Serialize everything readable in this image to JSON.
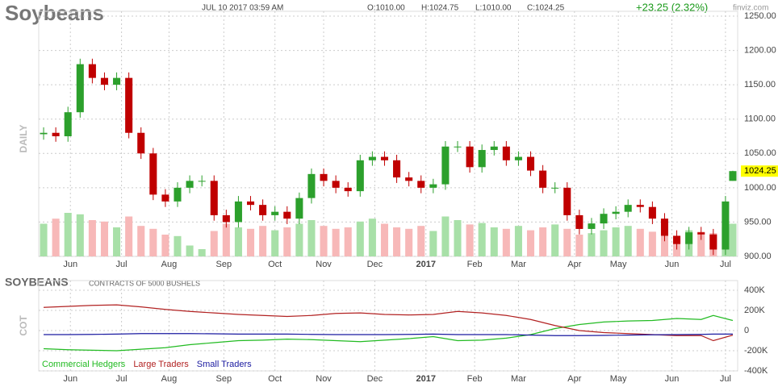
{
  "chart_data": [
    {
      "type": "candlestick",
      "title": "Soybeans",
      "date_label": "JUL 10 2017 03:59 AM",
      "ohlc_labels": [
        "O:1010.00",
        "H:1024.75",
        "L:1010.00",
        "C:1024.25"
      ],
      "change_label": "+23.25 (2.32%)",
      "source": "finviz.com",
      "y_label": "DAILY",
      "last_label": "1024.25",
      "x": [
        0,
        5,
        10,
        15,
        20,
        25,
        30,
        35,
        40,
        45,
        50,
        55,
        60,
        65,
        70,
        75,
        80,
        85,
        90,
        95,
        100,
        105,
        110,
        115,
        120,
        125,
        130,
        135,
        140,
        145,
        150,
        155,
        160,
        165,
        170,
        175,
        180,
        185,
        190,
        195,
        200,
        205,
        210,
        215,
        220,
        225,
        230,
        235,
        240,
        245,
        250,
        255,
        260,
        265,
        270,
        275,
        280,
        283
      ],
      "open": [
        1078,
        1080,
        1075,
        1110,
        1180,
        1160,
        1150,
        1160,
        1080,
        1050,
        990,
        980,
        1000,
        1010,
        1010,
        960,
        950,
        980,
        975,
        960,
        965,
        955,
        985,
        1020,
        1010,
        1000,
        995,
        1040,
        1045,
        1040,
        1015,
        1010,
        1000,
        1005,
        1060,
        1060,
        1030,
        1055,
        1060,
        1040,
        1045,
        1025,
        1000,
        1000,
        960,
        940,
        948,
        962,
        965,
        975,
        972,
        955,
        930,
        918,
        935,
        932,
        910,
        1010
      ],
      "high": [
        1088,
        1088,
        1118,
        1188,
        1188,
        1168,
        1168,
        1168,
        1088,
        1058,
        998,
        1008,
        1018,
        1018,
        1018,
        968,
        988,
        988,
        983,
        973,
        973,
        993,
        1028,
        1028,
        1018,
        1008,
        1048,
        1053,
        1053,
        1048,
        1023,
        1018,
        1013,
        1068,
        1068,
        1068,
        1063,
        1068,
        1068,
        1053,
        1053,
        1033,
        1008,
        1008,
        968,
        956,
        970,
        973,
        983,
        983,
        980,
        963,
        938,
        943,
        943,
        940,
        988,
        1024.75
      ],
      "low": [
        1070,
        1067,
        1067,
        1102,
        1152,
        1142,
        1142,
        1072,
        1042,
        982,
        972,
        972,
        992,
        1002,
        952,
        942,
        942,
        967,
        952,
        952,
        947,
        947,
        977,
        1002,
        992,
        987,
        987,
        1032,
        1032,
        1007,
        1002,
        992,
        992,
        997,
        1052,
        1022,
        1022,
        1047,
        1032,
        1032,
        1017,
        992,
        992,
        952,
        932,
        932,
        940,
        954,
        957,
        964,
        947,
        922,
        910,
        910,
        924,
        902,
        902,
        1010
      ],
      "close": [
        1080,
        1075,
        1110,
        1180,
        1160,
        1150,
        1160,
        1080,
        1050,
        990,
        980,
        1000,
        1010,
        1010,
        960,
        950,
        980,
        975,
        960,
        965,
        955,
        985,
        1020,
        1010,
        1000,
        995,
        1040,
        1045,
        1040,
        1015,
        1010,
        1000,
        1005,
        1060,
        1060,
        1030,
        1055,
        1060,
        1040,
        1045,
        1025,
        1000,
        1000,
        960,
        940,
        948,
        962,
        965,
        975,
        972,
        955,
        930,
        918,
        935,
        932,
        910,
        980,
        1024.25
      ],
      "volume": [
        45,
        52,
        60,
        58,
        50,
        48,
        40,
        55,
        42,
        38,
        30,
        28,
        15,
        10,
        35,
        45,
        40,
        38,
        42,
        36,
        40,
        45,
        50,
        42,
        38,
        40,
        48,
        52,
        45,
        40,
        38,
        42,
        35,
        55,
        50,
        44,
        46,
        40,
        38,
        42,
        36,
        40,
        44,
        38,
        30,
        32,
        36,
        40,
        42,
        38,
        34,
        30,
        28,
        36,
        34,
        32,
        40,
        45
      ],
      "xlim": [
        -2,
        285
      ],
      "xticks": [
        {
          "value": 11,
          "label": "Jun"
        },
        {
          "value": 32,
          "label": "Jul"
        },
        {
          "value": 51.5,
          "label": "Aug"
        },
        {
          "value": 74,
          "label": "Sep"
        },
        {
          "value": 95,
          "label": "Oct"
        },
        {
          "value": 115,
          "label": "Nov"
        },
        {
          "value": 136,
          "label": "Dec"
        },
        {
          "value": 157,
          "label": "2017"
        },
        {
          "value": 177,
          "label": "Feb"
        },
        {
          "value": 195,
          "label": "Mar"
        },
        {
          "value": 218,
          "label": "Apr"
        },
        {
          "value": 236,
          "label": "May"
        },
        {
          "value": 258,
          "label": "Jun"
        },
        {
          "value": 280,
          "label": "Jul"
        }
      ],
      "ylim": [
        900,
        1250
      ],
      "yticks": [
        {
          "value": 900,
          "label": "900.00"
        },
        {
          "value": 950,
          "label": "950.00"
        },
        {
          "value": 1000,
          "label": "1000.00"
        },
        {
          "value": 1050,
          "label": "1050.00"
        },
        {
          "value": 1100,
          "label": "1100.00"
        },
        {
          "value": 1150,
          "label": "1150.00"
        },
        {
          "value": 1200,
          "label": "1200.00"
        },
        {
          "value": 1250,
          "label": "1250.00"
        }
      ],
      "up_color": "#2ca02c",
      "down_color": "#c00000",
      "grid": true
    },
    {
      "type": "line",
      "title": "SOYBEANS",
      "subtitle": "CONTRACTS OF 5000 BUSHELS",
      "y_label": "COT",
      "x": [
        0,
        10,
        20,
        30,
        40,
        50,
        60,
        70,
        80,
        90,
        100,
        110,
        120,
        130,
        140,
        150,
        160,
        170,
        180,
        190,
        200,
        210,
        220,
        230,
        240,
        250,
        260,
        270,
        275,
        283
      ],
      "xlim": [
        -2,
        285
      ],
      "series": [
        {
          "name": "Commercial Hedgers",
          "color": "#22bb22",
          "values": [
            -180000,
            -190000,
            -195000,
            -200000,
            -185000,
            -170000,
            -140000,
            -120000,
            -100000,
            -95000,
            -85000,
            -90000,
            -100000,
            -110000,
            -95000,
            -80000,
            -60000,
            -100000,
            -95000,
            -75000,
            -40000,
            20000,
            60000,
            85000,
            95000,
            100000,
            120000,
            110000,
            150000,
            100000
          ]
        },
        {
          "name": "Large Traders",
          "color": "#b22222",
          "values": [
            230000,
            240000,
            250000,
            255000,
            235000,
            210000,
            190000,
            175000,
            160000,
            150000,
            140000,
            150000,
            170000,
            175000,
            160000,
            155000,
            160000,
            190000,
            175000,
            150000,
            110000,
            50000,
            0,
            -20000,
            -30000,
            -40000,
            -50000,
            -50000,
            -100000,
            -45000
          ]
        },
        {
          "name": "Small Traders",
          "color": "#1a1aa0",
          "values": [
            -40000,
            -40000,
            -38000,
            -35000,
            -30000,
            -30000,
            -30000,
            -32000,
            -35000,
            -35000,
            -35000,
            -38000,
            -40000,
            -40000,
            -40000,
            -38000,
            -35000,
            -40000,
            -40000,
            -40000,
            -45000,
            -50000,
            -50000,
            -48000,
            -45000,
            -42000,
            -40000,
            -38000,
            -35000,
            -35000
          ]
        }
      ],
      "ylim": [
        -400000,
        400000
      ],
      "yticks": [
        {
          "value": -400000,
          "label": "-400K"
        },
        {
          "value": -200000,
          "label": "-200K"
        },
        {
          "value": 0,
          "label": "0"
        },
        {
          "value": 200000,
          "label": "200K"
        },
        {
          "value": 400000,
          "label": "400K"
        }
      ],
      "grid": true
    }
  ]
}
